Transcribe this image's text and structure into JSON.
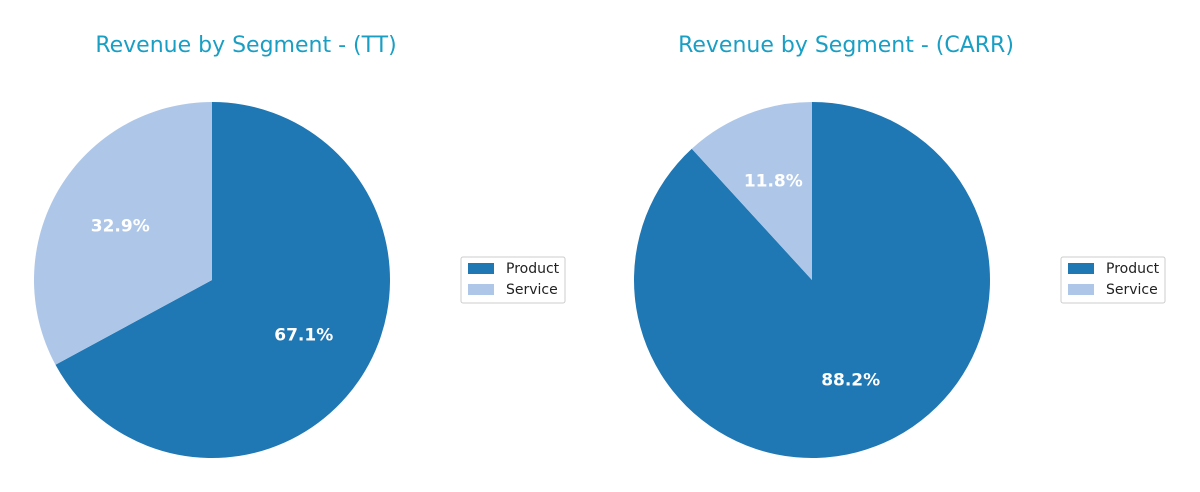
{
  "chart_data": [
    {
      "type": "pie",
      "title": "Revenue by Segment - (TT)",
      "categories": [
        "Product",
        "Service"
      ],
      "values": [
        67.1,
        32.9
      ],
      "labels": [
        "67.1%",
        "32.9%"
      ],
      "colors": [
        "#1f77b4",
        "#aec7e8"
      ],
      "start_angle": 90,
      "direction": "clockwise-from-top",
      "legend": {
        "entries": [
          "Product",
          "Service"
        ],
        "placement": "right"
      }
    },
    {
      "type": "pie",
      "title": "Revenue by Segment - (CARR)",
      "categories": [
        "Product",
        "Service"
      ],
      "values": [
        88.2,
        11.8
      ],
      "labels": [
        "88.2%",
        "11.8%"
      ],
      "colors": [
        "#1f77b4",
        "#aec7e8"
      ],
      "start_angle": 90,
      "direction": "clockwise-from-top",
      "legend": {
        "entries": [
          "Product",
          "Service"
        ],
        "placement": "right"
      }
    }
  ]
}
